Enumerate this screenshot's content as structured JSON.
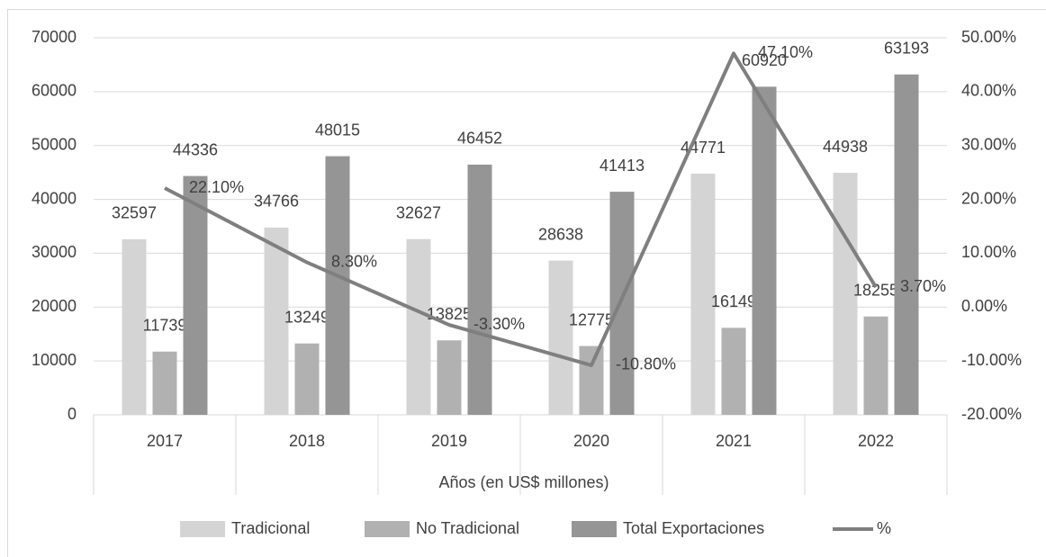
{
  "chart_data": {
    "type": "bar",
    "x_label": "Años (en US$ millones)",
    "categories": [
      "2017",
      "2018",
      "2019",
      "2020",
      "2021",
      "2022"
    ],
    "series": [
      {
        "name": "Tradicional",
        "color": "#d4d4d4",
        "values": [
          32597,
          34766,
          32627,
          28638,
          44771,
          44938
        ]
      },
      {
        "name": "No Tradicional",
        "color": "#b1b1b1",
        "values": [
          11739,
          13249,
          13825,
          12775,
          16149,
          18255
        ]
      },
      {
        "name": "Total Exportaciones",
        "color": "#959595",
        "values": [
          44336,
          48015,
          46452,
          41413,
          60920,
          63193
        ]
      },
      {
        "name": "%",
        "color": "#7f7f7f",
        "type": "line",
        "axis": "y2",
        "values": [
          22.1,
          8.3,
          -3.3,
          -10.8,
          47.1,
          3.7
        ],
        "value_labels": [
          "22.10%",
          "8.30%",
          "-3.30%",
          "-10.80%",
          "47.10%",
          "3.70%"
        ]
      }
    ],
    "ylim": [
      0,
      70000
    ],
    "yticks": [
      0,
      10000,
      20000,
      30000,
      40000,
      50000,
      60000,
      70000
    ],
    "y2lim": [
      -20,
      50
    ],
    "y2ticks": [
      {
        "value": -20,
        "label": "-20.00%"
      },
      {
        "value": -10,
        "label": "-10.00%"
      },
      {
        "value": 0,
        "label": "0.00%"
      },
      {
        "value": 10,
        "label": "10.00%"
      },
      {
        "value": 20,
        "label": "20.00%"
      },
      {
        "value": 30,
        "label": "30.00%"
      },
      {
        "value": 40,
        "label": "40.00%"
      },
      {
        "value": 50,
        "label": "50.00%"
      }
    ],
    "grid": true,
    "legend": "bottom"
  }
}
